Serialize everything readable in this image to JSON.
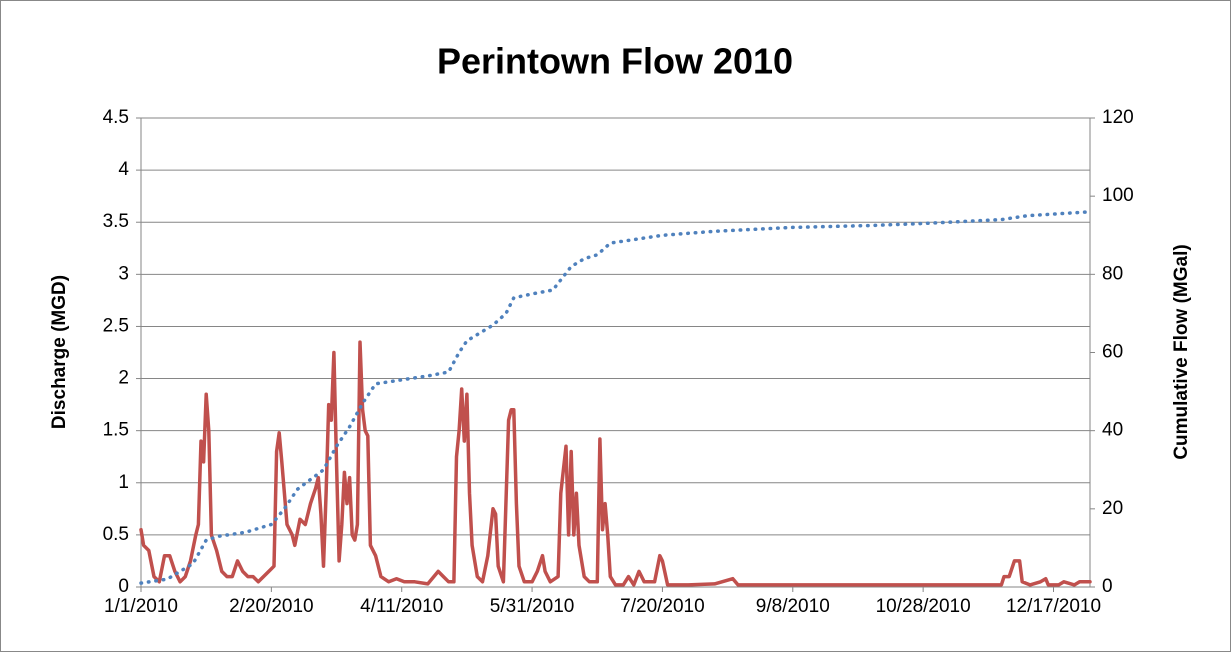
{
  "chart_data": {
    "type": "line",
    "title": "Perintown Flow 2010",
    "y_label": "Discharge (MGD)",
    "y2_label": "Cumulative Flow (MGal)",
    "xlim": [
      "1/1/2010",
      "12/31/2010"
    ],
    "xticks": [
      "1/1/2010",
      "2/20/2010",
      "4/11/2010",
      "5/31/2010",
      "7/20/2010",
      "9/8/2010",
      "10/28/2010",
      "12/17/2010"
    ],
    "ylim": [
      0,
      4.5
    ],
    "yticks": [
      0,
      0.5,
      1,
      1.5,
      2,
      2.5,
      3,
      3.5,
      4,
      4.5
    ],
    "y2lim": [
      0,
      120
    ],
    "y2ticks": [
      0,
      20,
      40,
      60,
      80,
      100,
      120
    ],
    "grid": true,
    "series": [
      {
        "color": "#c0504d",
        "style": "solid",
        "x": [
          "1/1/2010",
          "1/2/2010",
          "1/4/2010",
          "1/6/2010",
          "1/8/2010",
          "1/10/2010",
          "1/12/2010",
          "1/14/2010",
          "1/16/2010",
          "1/18/2010",
          "1/20/2010",
          "1/22/2010",
          "1/23/2010",
          "1/24/2010",
          "1/25/2010",
          "1/26/2010",
          "1/27/2010",
          "1/28/2010",
          "1/30/2010",
          "2/1/2010",
          "2/3/2010",
          "2/5/2010",
          "2/7/2010",
          "2/9/2010",
          "2/11/2010",
          "2/13/2010",
          "2/15/2010",
          "2/19/2010",
          "2/21/2010",
          "2/22/2010",
          "2/23/2010",
          "2/24/2010",
          "2/26/2010",
          "2/28/2010",
          "3/1/2010",
          "3/3/2010",
          "3/5/2010",
          "3/7/2010",
          "3/9/2010",
          "3/10/2010",
          "3/11/2010",
          "3/12/2010",
          "3/13/2010",
          "3/14/2010",
          "3/15/2010",
          "3/16/2010",
          "3/17/2010",
          "3/18/2010",
          "3/19/2010",
          "3/20/2010",
          "3/21/2010",
          "3/22/2010",
          "3/23/2010",
          "3/24/2010",
          "3/25/2010",
          "3/26/2010",
          "3/27/2010",
          "3/28/2010",
          "3/29/2010",
          "3/30/2010",
          "4/1/2010",
          "4/3/2010",
          "4/6/2010",
          "4/9/2010",
          "4/12/2010",
          "4/16/2010",
          "4/21/2010",
          "4/25/2010",
          "4/27/2010",
          "4/29/2010",
          "5/1/2010",
          "5/2/2010",
          "5/3/2010",
          "5/4/2010",
          "5/5/2010",
          "5/6/2010",
          "5/7/2010",
          "5/8/2010",
          "5/10/2010",
          "5/12/2010",
          "5/14/2010",
          "5/16/2010",
          "5/17/2010",
          "5/18/2010",
          "5/20/2010",
          "5/22/2010",
          "5/23/2010",
          "5/24/2010",
          "5/25/2010",
          "5/26/2010",
          "5/28/2010",
          "5/31/2010",
          "6/2/2010",
          "6/4/2010",
          "6/5/2010",
          "6/7/2010",
          "6/10/2010",
          "6/11/2010",
          "6/13/2010",
          "6/14/2010",
          "6/15/2010",
          "6/16/2010",
          "6/17/2010",
          "6/18/2010",
          "6/20/2010",
          "6/22/2010",
          "6/24/2010",
          "6/25/2010",
          "6/26/2010",
          "6/27/2010",
          "6/28/2010",
          "6/29/2010",
          "6/30/2010",
          "7/2/2010",
          "7/5/2010",
          "7/7/2010",
          "7/9/2010",
          "7/11/2010",
          "7/13/2010",
          "7/17/2010",
          "7/19/2010",
          "7/20/2010",
          "7/22/2010",
          "7/30/2010",
          "8/9/2010",
          "8/16/2010",
          "8/18/2010",
          "8/29/2010",
          "9/28/2010",
          "10/28/2010",
          "11/27/2010",
          "11/28/2010",
          "11/30/2010",
          "12/2/2010",
          "12/4/2010",
          "12/5/2010",
          "12/8/2010",
          "12/12/2010",
          "12/14/2010",
          "12/15/2010",
          "12/19/2010",
          "12/21/2010",
          "12/25/2010",
          "12/27/2010",
          "12/31/2010"
        ],
        "values": [
          0.55,
          0.4,
          0.35,
          0.1,
          0.05,
          0.3,
          0.3,
          0.15,
          0.05,
          0.1,
          0.25,
          0.5,
          0.6,
          1.4,
          1.2,
          1.85,
          1.5,
          0.5,
          0.35,
          0.15,
          0.1,
          0.1,
          0.25,
          0.15,
          0.1,
          0.1,
          0.05,
          0.15,
          0.2,
          1.3,
          1.48,
          1.2,
          0.6,
          0.5,
          0.4,
          0.65,
          0.6,
          0.8,
          0.95,
          1.05,
          0.7,
          0.2,
          0.9,
          1.75,
          1.6,
          2.25,
          1.2,
          0.25,
          0.6,
          1.1,
          0.8,
          1.05,
          0.5,
          0.45,
          0.6,
          2.35,
          1.7,
          1.5,
          1.45,
          0.4,
          0.3,
          0.1,
          0.05,
          0.08,
          0.05,
          0.05,
          0.03,
          0.15,
          0.1,
          0.05,
          0.05,
          1.25,
          1.5,
          1.9,
          1.4,
          1.85,
          0.9,
          0.4,
          0.1,
          0.05,
          0.3,
          0.75,
          0.7,
          0.2,
          0.05,
          1.6,
          1.7,
          1.7,
          0.8,
          0.2,
          0.05,
          0.05,
          0.15,
          0.3,
          0.15,
          0.05,
          0.1,
          0.9,
          1.35,
          0.5,
          1.3,
          0.5,
          0.9,
          0.4,
          0.1,
          0.05,
          0.05,
          0.05,
          1.42,
          0.55,
          0.8,
          0.5,
          0.1,
          0.02,
          0.02,
          0.1,
          0.02,
          0.15,
          0.05,
          0.05,
          0.3,
          0.25,
          0.02,
          0.02,
          0.03,
          0.08,
          0.02,
          0.02,
          0.02,
          0.02,
          0.02,
          0.1,
          0.1,
          0.25,
          0.25,
          0.05,
          0.02,
          0.05,
          0.08,
          0.02,
          0.02,
          0.05,
          0.02,
          0.05,
          0.05
        ]
      },
      {
        "color": "#4f81bd",
        "style": "dotted",
        "axis": "y2",
        "x": [
          "1/1/2010",
          "1/11/2010",
          "1/21/2010",
          "1/26/2010",
          "1/31/2010",
          "2/10/2010",
          "2/20/2010",
          "2/25/2010",
          "3/2/2010",
          "3/12/2010",
          "3/17/2010",
          "3/22/2010",
          "3/27/2010",
          "4/1/2010",
          "4/11/2010",
          "4/21/2010",
          "4/29/2010",
          "5/3/2010",
          "5/6/2010",
          "5/16/2010",
          "5/21/2010",
          "5/24/2010",
          "5/31/2010",
          "6/8/2010",
          "6/15/2010",
          "6/20/2010",
          "6/25/2010",
          "6/30/2010",
          "7/10/2010",
          "7/20/2010",
          "8/9/2010",
          "9/8/2010",
          "10/8/2010",
          "10/28/2010",
          "11/27/2010",
          "12/7/2010",
          "12/31/2010"
        ],
        "values": [
          1,
          2,
          6,
          12,
          13,
          14,
          16,
          20,
          25,
          30,
          36,
          41,
          47,
          52,
          53,
          54,
          55,
          60,
          63,
          67,
          70,
          74,
          75,
          76,
          82,
          84,
          85,
          88,
          89,
          90,
          91,
          92,
          92.5,
          93,
          94,
          95,
          96
        ]
      }
    ]
  }
}
